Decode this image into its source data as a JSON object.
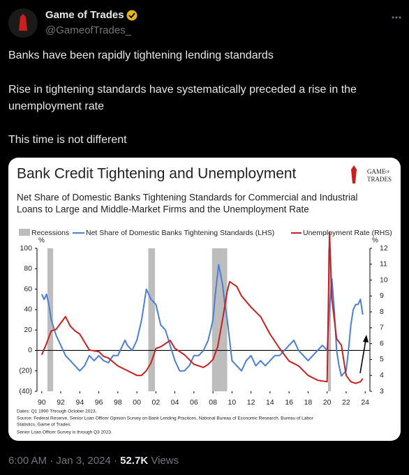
{
  "author": {
    "name": "Game of Trades",
    "handle": "@GameofTrades_"
  },
  "text": [
    "Banks have been rapidly tightening lending standards",
    "Rise in tightening standards have systematically preceded a rise in the",
    "unemployment rate",
    "This time is not different"
  ],
  "footer": {
    "time": "6:00 AM",
    "separator": "·",
    "date": "Jan 3, 2024",
    "views": "52.7K",
    "views_label": "Views"
  },
  "chart_data": {
    "type": "line",
    "title": "Bank Credit Tightening and Unemployment",
    "subtitle": [
      "Net Share of Domestic Banks Tightening Standards for Commercial and Industrial",
      "Loans to Large and Middle-Market Firms and the Unemployment Rate"
    ],
    "logo": [
      "GAME",
      "OF",
      "TRADES"
    ],
    "y_unit": "%",
    "y2_unit": "%",
    "xlim": [
      1989.5,
      2024.5
    ],
    "xticks": [
      {
        "value": 1990,
        "label": "90"
      },
      {
        "value": 1992,
        "label": "92"
      },
      {
        "value": 1994,
        "label": "94"
      },
      {
        "value": 1996,
        "label": "96"
      },
      {
        "value": 1998,
        "label": "98"
      },
      {
        "value": 2000,
        "label": "00"
      },
      {
        "value": 2002,
        "label": "02"
      },
      {
        "value": 2004,
        "label": "04"
      },
      {
        "value": 2006,
        "label": "06"
      },
      {
        "value": 2008,
        "label": "08"
      },
      {
        "value": 2010,
        "label": "10"
      },
      {
        "value": 2012,
        "label": "12"
      },
      {
        "value": 2014,
        "label": "14"
      },
      {
        "value": 2016,
        "label": "16"
      },
      {
        "value": 2018,
        "label": "18"
      },
      {
        "value": 2020,
        "label": "20"
      },
      {
        "value": 2022,
        "label": "22"
      },
      {
        "value": 2024,
        "label": "24"
      }
    ],
    "ylim": [
      -40,
      100
    ],
    "yticks": [
      100,
      80,
      60,
      40,
      20,
      0,
      {
        "value": -20,
        "label": "(20)"
      },
      {
        "value": -40,
        "label": "(40)"
      }
    ],
    "y2lim": [
      3,
      12
    ],
    "y2ticks": [
      3,
      4,
      5,
      6,
      7,
      8,
      9,
      10,
      11,
      12
    ],
    "recessions": {
      "name": "Recessions",
      "color": "#bdbdbd",
      "spans": [
        [
          1990.6,
          1991.2
        ],
        [
          2001.2,
          2001.9
        ],
        [
          2007.9,
          2009.5
        ],
        [
          2020.1,
          2020.4
        ]
      ]
    },
    "series": [
      {
        "name": "Net Share of Domestic Banks Tightening Standards (LHS)",
        "color": "#4a7fd4",
        "x": [
          1990,
          1990.25,
          1990.5,
          1990.75,
          1991,
          1991.5,
          1992,
          1992.5,
          1993,
          1993.5,
          1994,
          1994.5,
          1995,
          1995.5,
          1996,
          1996.5,
          1997,
          1997.5,
          1998,
          1998.5,
          1998.75,
          1999,
          1999.5,
          2000,
          2000.5,
          2000.75,
          2001,
          2001.25,
          2001.5,
          2002,
          2002.5,
          2003,
          2003.5,
          2004,
          2004.5,
          2005,
          2005.5,
          2006,
          2006.5,
          2007,
          2007.5,
          2008,
          2008.25,
          2008.6,
          2009,
          2009.25,
          2009.5,
          2009.75,
          2010,
          2010.5,
          2011,
          2011.5,
          2012,
          2012.5,
          2013,
          2013.5,
          2014,
          2014.5,
          2015,
          2015.5,
          2016,
          2016.5,
          2017,
          2017.5,
          2018,
          2018.5,
          2019,
          2019.5,
          2020,
          2020.25,
          2020.5,
          2020.75,
          2021,
          2021.25,
          2021.5,
          2022,
          2022.25,
          2022.5,
          2022.75,
          2023,
          2023.25,
          2023.5,
          2023.75
        ],
        "values": [
          55,
          50,
          55,
          45,
          30,
          15,
          5,
          -5,
          -10,
          -15,
          -20,
          -15,
          -5,
          -10,
          -5,
          -10,
          -12,
          -5,
          -5,
          5,
          10,
          5,
          0,
          10,
          30,
          45,
          60,
          55,
          50,
          45,
          25,
          20,
          5,
          -10,
          -20,
          -20,
          -15,
          -5,
          -5,
          0,
          10,
          30,
          55,
          84,
          65,
          45,
          30,
          10,
          -10,
          -15,
          -20,
          -10,
          -5,
          -15,
          -10,
          -15,
          -10,
          -5,
          -5,
          0,
          5,
          10,
          0,
          -5,
          -10,
          -5,
          0,
          5,
          0,
          40,
          70,
          40,
          0,
          -15,
          -25,
          -20,
          0,
          25,
          40,
          45,
          45,
          50,
          35
        ]
      },
      {
        "name": "Unemployment Rate (RHS)",
        "color": "#c8201e",
        "axis": "y2",
        "x": [
          1990,
          1990.5,
          1991,
          1991.5,
          1992,
          1992.5,
          1993,
          1993.5,
          1994,
          1994.5,
          1995,
          1996,
          1996.5,
          1997,
          1998,
          1999,
          2000,
          2000.5,
          2001,
          2001.5,
          2002,
          2002.5,
          2003,
          2003.5,
          2004,
          2005,
          2006,
          2007,
          2007.5,
          2008,
          2008.5,
          2009,
          2009.5,
          2009.75,
          2010.5,
          2011,
          2012,
          2013,
          2014,
          2015,
          2016,
          2017,
          2018,
          2019,
          2020,
          2020.25,
          2020.5,
          2021,
          2021.5,
          2022,
          2022.5,
          2023,
          2023.5,
          2023.75
        ],
        "values": [
          5.3,
          6,
          6.8,
          6.9,
          7.3,
          7.7,
          7.1,
          6.8,
          6.6,
          6.1,
          5.6,
          5.5,
          5.2,
          5.1,
          4.6,
          4.3,
          4.0,
          4.0,
          4.3,
          4.8,
          5.7,
          5.8,
          6.0,
          6.2,
          5.7,
          5.3,
          4.7,
          4.5,
          4.7,
          5.0,
          5.8,
          7.5,
          9.3,
          9.9,
          9.6,
          9.0,
          8.3,
          7.7,
          6.6,
          5.7,
          4.9,
          4.6,
          4.0,
          3.7,
          3.6,
          13.0,
          8.8,
          6.3,
          5.9,
          4.0,
          3.6,
          3.5,
          3.6,
          3.8
        ]
      }
    ],
    "notes": [
      "Dates: Q1 1990 Through October 2023.",
      "Source: Federal Reserve, Senior Loan Officer Opinion Survey on Bank Lending Practices, National Bureau of Economic Research, Bureau of Labor",
      "Statistics, Game of Trades.",
      "Senior Loan Officer Survey is through Q3 2023."
    ]
  }
}
